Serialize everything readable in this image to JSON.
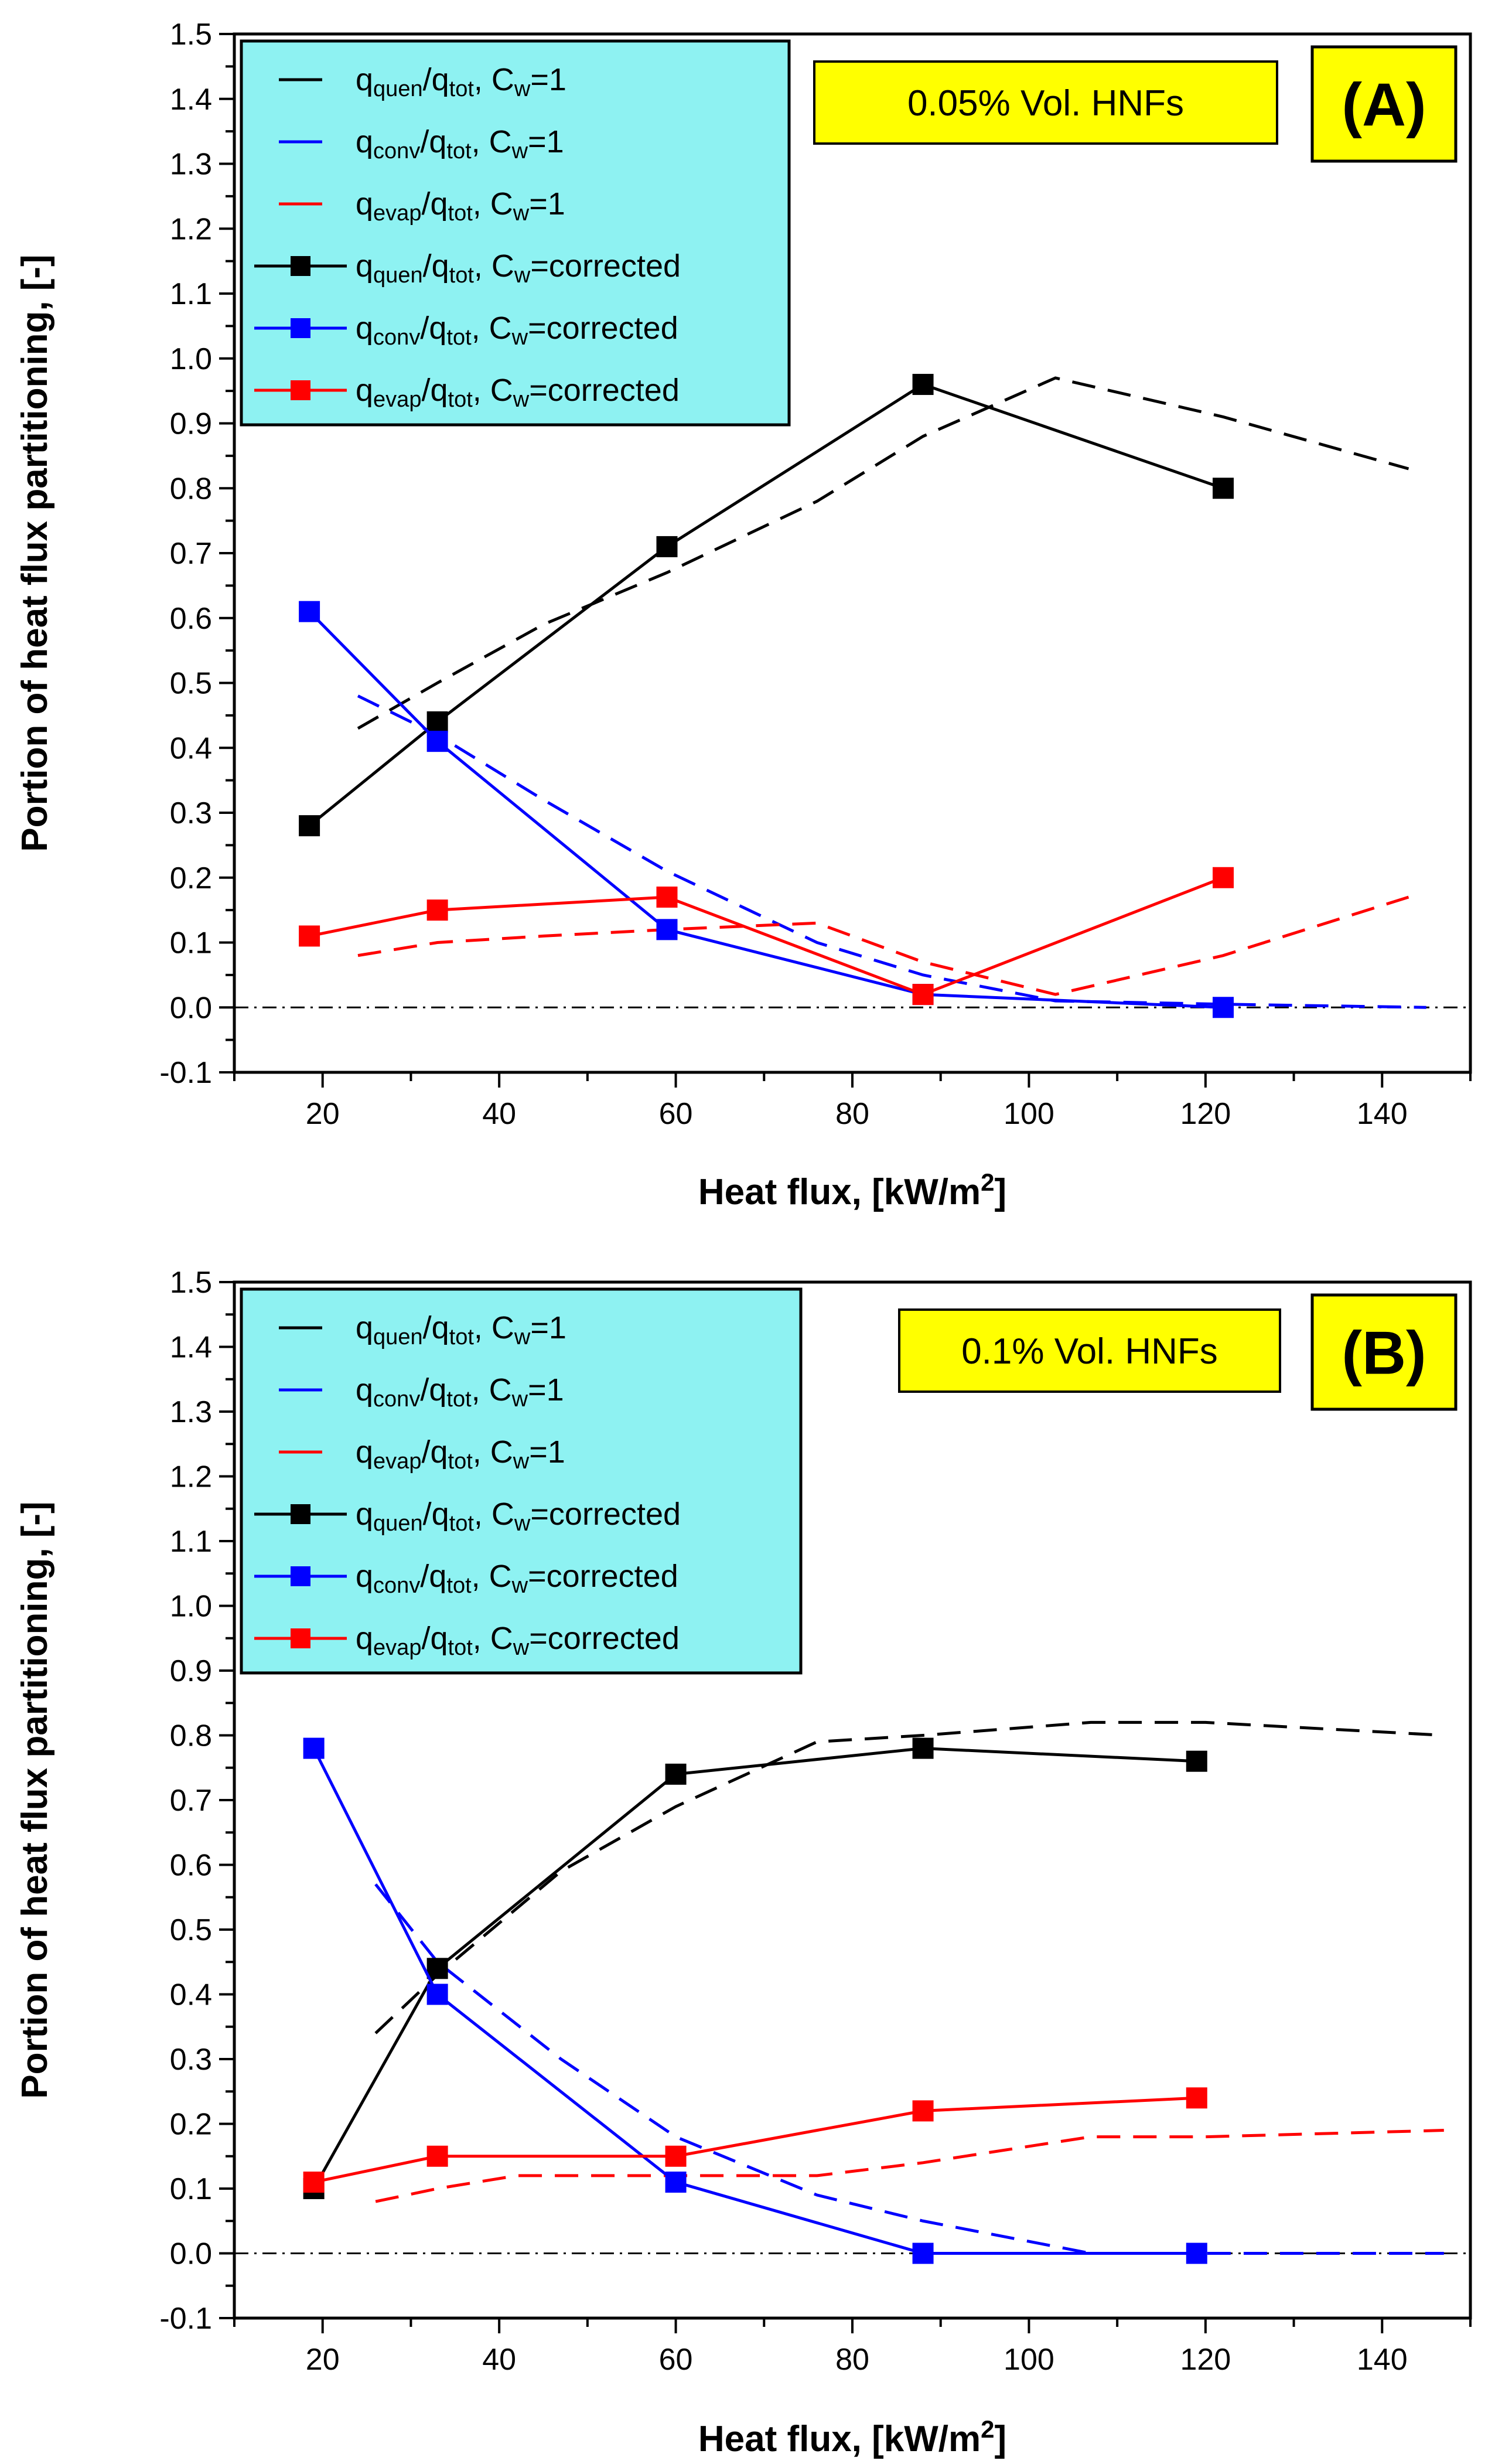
{
  "chart_data": [
    {
      "type": "line",
      "panel_label": "(A)",
      "annotation": "0.05% Vol. HNFs",
      "xlabel": "Heat flux, [kW/m",
      "xlabel_sup": "2",
      "xlabel_end": "]",
      "ylabel": "Portion of heat flux partitioning, [-]",
      "xlim": [
        10,
        150
      ],
      "ylim": [
        -0.1,
        1.5
      ],
      "x_ticks": [
        20,
        40,
        60,
        80,
        100,
        120,
        140
      ],
      "y_ticks": [
        "-0.1",
        "0.0",
        "0.1",
        "0.2",
        "0.3",
        "0.4",
        "0.5",
        "0.6",
        "0.7",
        "0.8",
        "0.9",
        "1.0",
        "1.1",
        "1.2",
        "1.3",
        "1.4",
        "1.5"
      ],
      "zero_line": 0.0,
      "series": [
        {
          "key": "quen_cw1",
          "q": "q",
          "sub1": "quen",
          "sub2": "tot",
          "cw": "=1",
          "color": "#000000",
          "style": "dashed",
          "x": [
            24,
            33,
            45,
            59,
            76,
            88,
            103,
            122,
            143
          ],
          "y": [
            0.43,
            0.5,
            0.59,
            0.67,
            0.78,
            0.88,
            0.97,
            0.91,
            0.83
          ]
        },
        {
          "key": "conv_cw1",
          "q": "q",
          "sub1": "conv",
          "sub2": "tot",
          "cw": "=1",
          "color": "#0000ff",
          "style": "dashed",
          "x": [
            24,
            33,
            45,
            59,
            76,
            88,
            103,
            122,
            145
          ],
          "y": [
            0.48,
            0.42,
            0.32,
            0.21,
            0.1,
            0.05,
            0.01,
            0.005,
            0.0
          ]
        },
        {
          "key": "evap_cw1",
          "q": "q",
          "sub1": "evap",
          "sub2": "tot",
          "cw": "=1",
          "color": "#ff0000",
          "style": "dashed",
          "x": [
            24,
            33,
            45,
            59,
            76,
            88,
            103,
            122,
            143
          ],
          "y": [
            0.08,
            0.1,
            0.11,
            0.12,
            0.13,
            0.07,
            0.02,
            0.08,
            0.17
          ]
        },
        {
          "key": "quen_corr",
          "q": "q",
          "sub1": "quen",
          "sub2": "tot",
          "cw": "=corrected",
          "color": "#000000",
          "style": "solid",
          "x": [
            18.5,
            33,
            59,
            88,
            122
          ],
          "y": [
            0.28,
            0.44,
            0.71,
            0.96,
            0.8
          ]
        },
        {
          "key": "conv_corr",
          "q": "q",
          "sub1": "conv",
          "sub2": "tot",
          "cw": "=corrected",
          "color": "#0000ff",
          "style": "solid",
          "x": [
            18.5,
            33,
            59,
            88,
            122
          ],
          "y": [
            0.61,
            0.41,
            0.12,
            0.02,
            0.0
          ]
        },
        {
          "key": "evap_corr",
          "q": "q",
          "sub1": "evap",
          "sub2": "tot",
          "cw": "=corrected",
          "color": "#ff0000",
          "style": "solid",
          "x": [
            18.5,
            33,
            59,
            88,
            122
          ],
          "y": [
            0.11,
            0.15,
            0.17,
            0.02,
            0.2
          ]
        }
      ]
    },
    {
      "type": "line",
      "panel_label": "(B)",
      "annotation": "0.1% Vol. HNFs",
      "xlabel": "Heat flux, [kW/m",
      "xlabel_sup": "2",
      "xlabel_end": "]",
      "ylabel": "Portion of heat flux partitioning, [-]",
      "xlim": [
        10,
        150
      ],
      "ylim": [
        -0.1,
        1.5
      ],
      "x_ticks": [
        20,
        40,
        60,
        80,
        100,
        120,
        140
      ],
      "y_ticks": [
        "-0.1",
        "0.0",
        "0.1",
        "0.2",
        "0.3",
        "0.4",
        "0.5",
        "0.6",
        "0.7",
        "0.8",
        "0.9",
        "1.0",
        "1.1",
        "1.2",
        "1.3",
        "1.4",
        "1.5"
      ],
      "zero_line": 0.0,
      "series": [
        {
          "key": "quen_cw1",
          "q": "q",
          "sub1": "quen",
          "sub2": "tot",
          "cw": "=1",
          "color": "#000000",
          "style": "dashed",
          "x": [
            26,
            33,
            47,
            60,
            76,
            88,
            107,
            120,
            147
          ],
          "y": [
            0.34,
            0.43,
            0.59,
            0.69,
            0.79,
            0.8,
            0.82,
            0.82,
            0.8
          ]
        },
        {
          "key": "conv_cw1",
          "q": "q",
          "sub1": "conv",
          "sub2": "tot",
          "cw": "=1",
          "color": "#0000ff",
          "style": "dashed",
          "x": [
            26,
            33,
            47,
            60,
            76,
            88,
            107,
            120,
            147
          ],
          "y": [
            0.57,
            0.45,
            0.3,
            0.18,
            0.09,
            0.05,
            0.0,
            0.0,
            0.0
          ]
        },
        {
          "key": "evap_cw1",
          "q": "q",
          "sub1": "evap",
          "sub2": "tot",
          "cw": "=1",
          "color": "#ff0000",
          "style": "dashed",
          "x": [
            26,
            33,
            42,
            60,
            76,
            88,
            107,
            120,
            147
          ],
          "y": [
            0.08,
            0.1,
            0.12,
            0.12,
            0.12,
            0.14,
            0.18,
            0.18,
            0.19
          ]
        },
        {
          "key": "quen_corr",
          "q": "q",
          "sub1": "quen",
          "sub2": "tot",
          "cw": "=corrected",
          "color": "#000000",
          "style": "solid",
          "x": [
            19,
            33,
            60,
            88,
            119
          ],
          "y": [
            0.1,
            0.44,
            0.74,
            0.78,
            0.76
          ]
        },
        {
          "key": "conv_corr",
          "q": "q",
          "sub1": "conv",
          "sub2": "tot",
          "cw": "=corrected",
          "color": "#0000ff",
          "style": "solid",
          "x": [
            19,
            33,
            60,
            88,
            119
          ],
          "y": [
            0.78,
            0.4,
            0.11,
            0.0,
            0.0
          ]
        },
        {
          "key": "evap_corr",
          "q": "q",
          "sub1": "evap",
          "sub2": "tot",
          "cw": "=corrected",
          "color": "#ff0000",
          "style": "solid",
          "x": [
            19,
            33,
            60,
            88,
            119
          ],
          "y": [
            0.11,
            0.15,
            0.15,
            0.22,
            0.24
          ]
        }
      ]
    }
  ]
}
